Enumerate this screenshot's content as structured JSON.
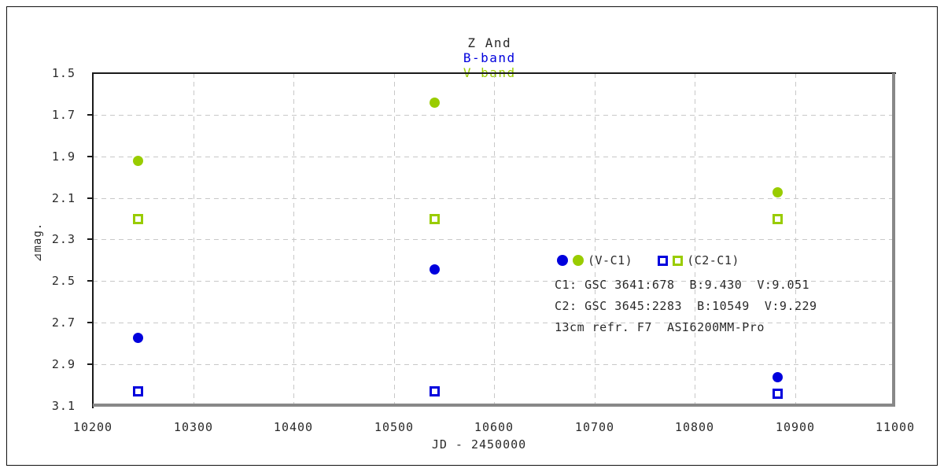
{
  "title": {
    "object": "Z And",
    "band_b": "B-band",
    "band_v": "V-band"
  },
  "legend": {
    "group1_label": "(V-C1)",
    "group2_label": "(C2-C1)",
    "line1": "C1: GSC 3641:678  B:9.430  V:9.051",
    "line2": "C2: GSC 3645:2283  B:10549  V:9.229",
    "line3": "13cm refr. F7  ASI6200MM-Pro"
  },
  "colors": {
    "b_band_blue": "#0000dd",
    "v_band_green": "#99cc00",
    "gridline_gray": "#c8c8c8",
    "frame_dark": "#1a1a1a",
    "frame_gray": "#888888",
    "text": "#2a2a2a"
  },
  "chart_data": {
    "type": "scatter",
    "title": "Z And  B-band  V-band",
    "xlabel": "JD - 2450000",
    "ylabel": "⊿mag.",
    "xlim": [
      10200,
      11000
    ],
    "ylim": [
      1.5,
      3.1
    ],
    "y_axis_inverted": true,
    "grid": "dashed",
    "x_ticks": [
      10200,
      10300,
      10400,
      10500,
      10600,
      10700,
      10800,
      10900,
      11000
    ],
    "y_ticks": [
      1.5,
      1.7,
      1.9,
      2.1,
      2.3,
      2.5,
      2.7,
      2.9,
      3.1
    ],
    "legend_position": "inside-right-middle",
    "series": [
      {
        "name": "V-C1 B-band",
        "marker": "circle",
        "filled": true,
        "color": "#0000dd",
        "points": [
          [
            10245,
            2.77
          ],
          [
            10540,
            2.44
          ],
          [
            10882,
            2.96
          ]
        ]
      },
      {
        "name": "V-C1 V-band",
        "marker": "circle",
        "filled": true,
        "color": "#99cc00",
        "points": [
          [
            10245,
            1.92
          ],
          [
            10540,
            1.64
          ],
          [
            10882,
            2.07
          ]
        ]
      },
      {
        "name": "C2-C1 B-band",
        "marker": "square",
        "filled": false,
        "color": "#0000dd",
        "points": [
          [
            10245,
            3.03
          ],
          [
            10540,
            3.03
          ],
          [
            10882,
            3.04
          ]
        ]
      },
      {
        "name": "C2-C1 V-band",
        "marker": "square",
        "filled": false,
        "color": "#99cc00",
        "points": [
          [
            10245,
            2.2
          ],
          [
            10540,
            2.2
          ],
          [
            10882,
            2.2
          ]
        ]
      }
    ]
  }
}
